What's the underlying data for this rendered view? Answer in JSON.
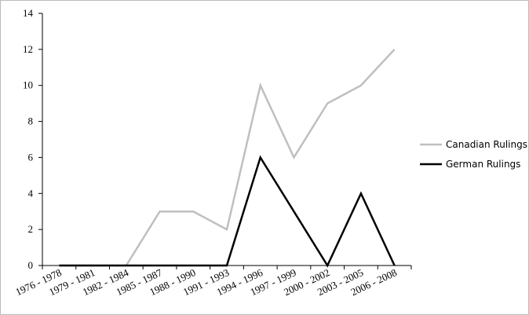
{
  "chart_data": {
    "type": "line",
    "categories": [
      "1976 - 1978",
      "1979 - 1981",
      "1982 - 1984",
      "1985 - 1987",
      "1988 - 1990",
      "1991 - 1993",
      "1994 - 1996",
      "1997 - 1999",
      "2000 - 2002",
      "2003 - 2005",
      "2006 - 2008"
    ],
    "series": [
      {
        "name": "Canadian Rulings",
        "color": "#bfbfbf",
        "values": [
          0,
          0,
          0,
          3,
          3,
          2,
          10,
          6,
          9,
          10,
          12
        ]
      },
      {
        "name": "German Rulings",
        "color": "#000000",
        "values": [
          0,
          0,
          0,
          0,
          0,
          0,
          6,
          3,
          0,
          4,
          0
        ]
      }
    ],
    "ylim": [
      0,
      14
    ],
    "yticks": [
      0,
      2,
      4,
      6,
      8,
      10,
      12,
      14
    ],
    "grid": false,
    "legend": "right"
  }
}
